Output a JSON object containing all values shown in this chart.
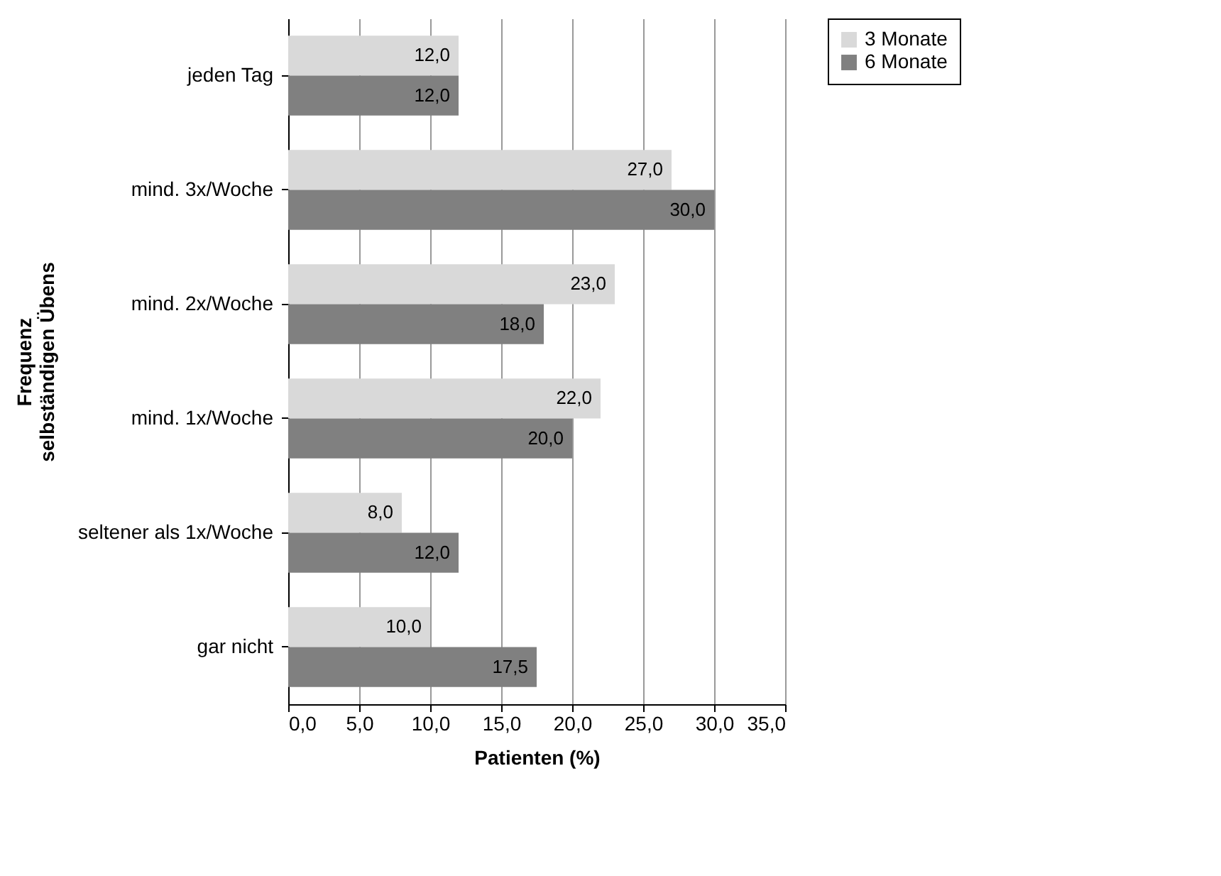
{
  "chart_data": {
    "type": "bar",
    "orientation": "horizontal",
    "xlabel": "Patienten (%)",
    "ylabel": "Frequenz selbständigen Übens",
    "categories": [
      "jeden Tag",
      "mind. 3x/Woche",
      "mind. 2x/Woche",
      "mind. 1x/Woche",
      "seltener als 1x/Woche",
      "gar nicht"
    ],
    "series": [
      {
        "name": "3 Monate",
        "color": "#d9d9d9",
        "values": [
          12,
          27,
          23,
          22,
          8,
          10
        ],
        "value_labels": [
          "12,0",
          "27,0",
          "23,0",
          "22,0",
          "8,0",
          "10,0"
        ]
      },
      {
        "name": "6 Monate",
        "color": "#808080",
        "values": [
          12,
          30,
          18,
          20,
          12,
          17.5
        ],
        "value_labels": [
          "12,0",
          "30,0",
          "18,0",
          "20,0",
          "12,0",
          "17,5"
        ]
      }
    ],
    "xlim": [
      0,
      35
    ],
    "xticks": [
      {
        "value": 0,
        "label": "0,0"
      },
      {
        "value": 5,
        "label": "5,0"
      },
      {
        "value": 10,
        "label": "10,0"
      },
      {
        "value": 15,
        "label": "15,0"
      },
      {
        "value": 20,
        "label": "20,0"
      },
      {
        "value": 25,
        "label": "25,0"
      },
      {
        "value": 30,
        "label": "30,0"
      },
      {
        "value": 35,
        "label": "35,0"
      }
    ],
    "grid": "x",
    "legend": "right"
  }
}
